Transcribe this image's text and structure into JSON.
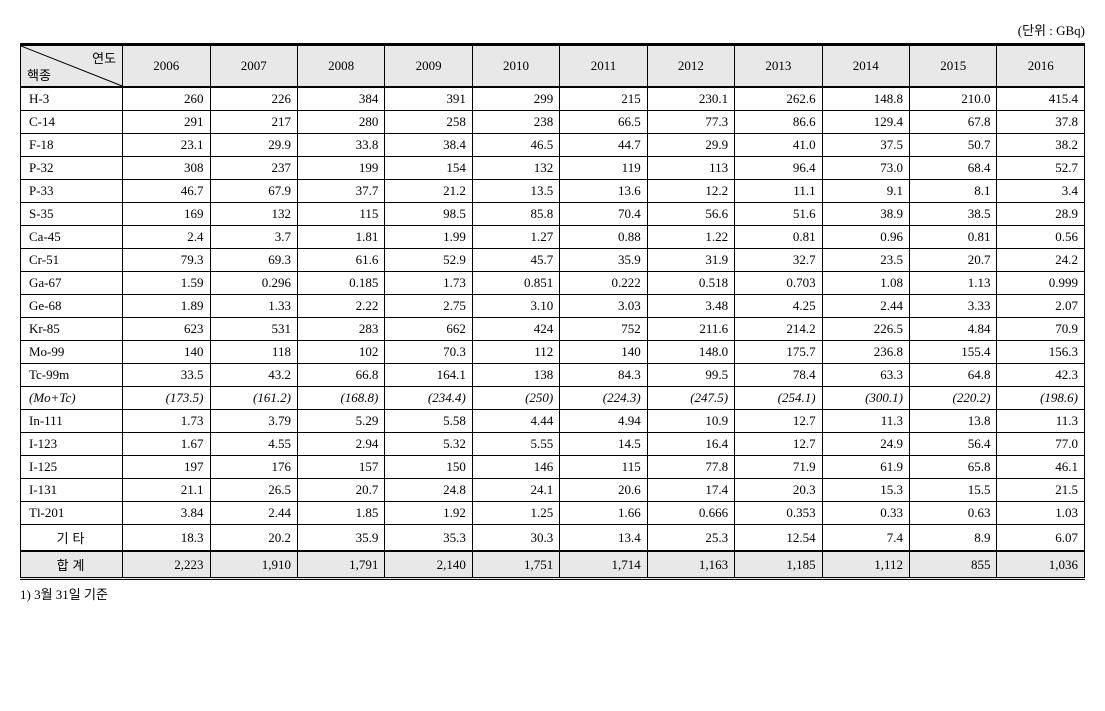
{
  "table": {
    "unit_label": "(단위 : GBq)",
    "header": {
      "diag_top": "연도",
      "diag_bottom": "핵종",
      "years": [
        "2006",
        "2007",
        "2008",
        "2009",
        "2010",
        "2011",
        "2012",
        "2013",
        "2014",
        "2015",
        "2016"
      ]
    },
    "colors": {
      "header_bg": "#e8e8e8",
      "border": "#000000",
      "background": "#ffffff",
      "text": "#000000"
    },
    "fontsize": 13,
    "rows": [
      {
        "label": "H-3",
        "values": [
          "260",
          "226",
          "384",
          "391",
          "299",
          "215",
          "230.1",
          "262.6",
          "148.8",
          "210.0",
          "415.4"
        ],
        "style": "normal"
      },
      {
        "label": "C-14",
        "values": [
          "291",
          "217",
          "280",
          "258",
          "238",
          "66.5",
          "77.3",
          "86.6",
          "129.4",
          "67.8",
          "37.8"
        ],
        "style": "normal"
      },
      {
        "label": "F-18",
        "values": [
          "23.1",
          "29.9",
          "33.8",
          "38.4",
          "46.5",
          "44.7",
          "29.9",
          "41.0",
          "37.5",
          "50.7",
          "38.2"
        ],
        "style": "normal"
      },
      {
        "label": "P-32",
        "values": [
          "308",
          "237",
          "199",
          "154",
          "132",
          "119",
          "113",
          "96.4",
          "73.0",
          "68.4",
          "52.7"
        ],
        "style": "normal"
      },
      {
        "label": "P-33",
        "values": [
          "46.7",
          "67.9",
          "37.7",
          "21.2",
          "13.5",
          "13.6",
          "12.2",
          "11.1",
          "9.1",
          "8.1",
          "3.4"
        ],
        "style": "normal"
      },
      {
        "label": "S-35",
        "values": [
          "169",
          "132",
          "115",
          "98.5",
          "85.8",
          "70.4",
          "56.6",
          "51.6",
          "38.9",
          "38.5",
          "28.9"
        ],
        "style": "normal"
      },
      {
        "label": "Ca-45",
        "values": [
          "2.4",
          "3.7",
          "1.81",
          "1.99",
          "1.27",
          "0.88",
          "1.22",
          "0.81",
          "0.96",
          "0.81",
          "0.56"
        ],
        "style": "normal"
      },
      {
        "label": "Cr-51",
        "values": [
          "79.3",
          "69.3",
          "61.6",
          "52.9",
          "45.7",
          "35.9",
          "31.9",
          "32.7",
          "23.5",
          "20.7",
          "24.2"
        ],
        "style": "normal"
      },
      {
        "label": "Ga-67",
        "values": [
          "1.59",
          "0.296",
          "0.185",
          "1.73",
          "0.851",
          "0.222",
          "0.518",
          "0.703",
          "1.08",
          "1.13",
          "0.999"
        ],
        "style": "normal"
      },
      {
        "label": "Ge-68",
        "values": [
          "1.89",
          "1.33",
          "2.22",
          "2.75",
          "3.10",
          "3.03",
          "3.48",
          "4.25",
          "2.44",
          "3.33",
          "2.07"
        ],
        "style": "normal"
      },
      {
        "label": "Kr-85",
        "values": [
          "623",
          "531",
          "283",
          "662",
          "424",
          "752",
          "211.6",
          "214.2",
          "226.5",
          "4.84",
          "70.9"
        ],
        "style": "normal"
      },
      {
        "label": "Mo-99",
        "values": [
          "140",
          "118",
          "102",
          "70.3",
          "112",
          "140",
          "148.0",
          "175.7",
          "236.8",
          "155.4",
          "156.3"
        ],
        "style": "normal"
      },
      {
        "label": "Tc-99m",
        "values": [
          "33.5",
          "43.2",
          "66.8",
          "164.1",
          "138",
          "84.3",
          "99.5",
          "78.4",
          "63.3",
          "64.8",
          "42.3"
        ],
        "style": "normal"
      },
      {
        "label": "(Mo+Tc)",
        "values": [
          "(173.5)",
          "(161.2)",
          "(168.8)",
          "(234.4)",
          "(250)",
          "(224.3)",
          "(247.5)",
          "(254.1)",
          "(300.1)",
          "(220.2)",
          "(198.6)"
        ],
        "style": "italic"
      },
      {
        "label": "In-111",
        "values": [
          "1.73",
          "3.79",
          "5.29",
          "5.58",
          "4.44",
          "4.94",
          "10.9",
          "12.7",
          "11.3",
          "13.8",
          "11.3"
        ],
        "style": "normal"
      },
      {
        "label": "I-123",
        "values": [
          "1.67",
          "4.55",
          "2.94",
          "5.32",
          "5.55",
          "14.5",
          "16.4",
          "12.7",
          "24.9",
          "56.4",
          "77.0"
        ],
        "style": "normal"
      },
      {
        "label": "I-125",
        "values": [
          "197",
          "176",
          "157",
          "150",
          "146",
          "115",
          "77.8",
          "71.9",
          "61.9",
          "65.8",
          "46.1"
        ],
        "style": "normal"
      },
      {
        "label": "I-131",
        "values": [
          "21.1",
          "26.5",
          "20.7",
          "24.8",
          "24.1",
          "20.6",
          "17.4",
          "20.3",
          "15.3",
          "15.5",
          "21.5"
        ],
        "style": "normal"
      },
      {
        "label": "Tl-201",
        "values": [
          "3.84",
          "2.44",
          "1.85",
          "1.92",
          "1.25",
          "1.66",
          "0.666",
          "0.353",
          "0.33",
          "0.63",
          "1.03"
        ],
        "style": "normal"
      },
      {
        "label": "기타",
        "values": [
          "18.3",
          "20.2",
          "35.9",
          "35.3",
          "30.3",
          "13.4",
          "25.3",
          "12.54",
          "7.4",
          "8.9",
          "6.07"
        ],
        "style": "etc"
      },
      {
        "label": "합계",
        "values": [
          "2,223",
          "1,910",
          "1,791",
          "2,140",
          "1,751",
          "1,714",
          "1,163",
          "1,185",
          "1,112",
          "855",
          "1,036"
        ],
        "style": "total"
      }
    ],
    "footnote": "1) 3월 31일 기준"
  }
}
